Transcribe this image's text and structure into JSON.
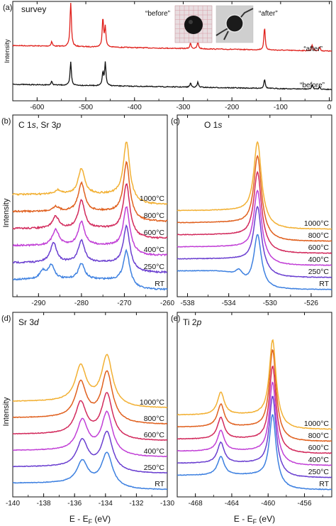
{
  "figure": {
    "panel_letters": [
      "(a)",
      "(b)",
      "(c)",
      "(d)",
      "(e)"
    ],
    "x_axis_label": "E - E",
    "x_axis_label_sub": "F",
    "x_axis_label_unit": " (eV)",
    "y_axis_label": "Intensity"
  },
  "chart_data": [
    {
      "id": "a",
      "type": "line",
      "panel_label": "(a)",
      "title": "survey",
      "ylabel": "Intensity",
      "xlim": [
        -650,
        5
      ],
      "xticks": [
        -600,
        -500,
        -400,
        -300,
        -200,
        -100,
        0
      ],
      "xtick_labels": [
        "-600",
        "-500",
        "-400",
        "-300",
        "-200",
        "-100",
        "0"
      ],
      "series_labels": [
        "“after”",
        "“before”"
      ],
      "inset_labels": [
        "“before”",
        "“after”"
      ],
      "series": [
        {
          "name": "“after”",
          "color": "#e0201b",
          "peaks": [
            [
              -531,
              1.0
            ],
            [
              -465,
              0.62
            ],
            [
              -460,
              0.42
            ],
            [
              -570,
              0.1
            ],
            [
              -285,
              0.12
            ],
            [
              -270,
              0.15
            ],
            [
              -133,
              0.48
            ],
            [
              -35,
              0.12
            ],
            [
              -20,
              0.08
            ]
          ]
        },
        {
          "name": "“before”",
          "color": "#111111",
          "peaks": [
            [
              -531,
              0.55
            ],
            [
              -465,
              0.3
            ],
            [
              -460,
              0.55
            ],
            [
              -570,
              0.08
            ],
            [
              -285,
              0.1
            ],
            [
              -270,
              0.12
            ],
            [
              -133,
              0.22
            ],
            [
              -35,
              0.1
            ],
            [
              -20,
              0.06
            ]
          ]
        }
      ],
      "grid": false
    },
    {
      "id": "b",
      "type": "line",
      "panel_label": "(b)",
      "title": "C 1s, Sr 3p",
      "ylabel": "Intensity",
      "xlim": [
        -296,
        -260
      ],
      "xticks": [
        -290,
        -280,
        -270,
        -260
      ],
      "xtick_labels": [
        "-290",
        "-280",
        "-270",
        "-260"
      ],
      "series_labels": [
        "1000°C",
        "800°C",
        "600°C",
        "400°C",
        "250°C",
        "RT"
      ],
      "series": [
        {
          "name": "1000°C",
          "peaks": [
            [
              -285.5,
              0.1
            ],
            [
              -280.0,
              0.65
            ],
            [
              -269.5,
              1.45
            ]
          ]
        },
        {
          "name": "800°C",
          "peaks": [
            [
              -286.0,
              0.12
            ],
            [
              -280.0,
              0.72
            ],
            [
              -269.5,
              1.35
            ]
          ]
        },
        {
          "name": "600°C",
          "peaks": [
            [
              -286.0,
              0.3
            ],
            [
              -280.0,
              0.7
            ],
            [
              -269.5,
              1.25
            ]
          ]
        },
        {
          "name": "400°C",
          "peaks": [
            [
              -286.0,
              0.4
            ],
            [
              -280.0,
              0.6
            ],
            [
              -269.5,
              1.1
            ]
          ]
        },
        {
          "name": "250°C",
          "peaks": [
            [
              -286.5,
              0.5
            ],
            [
              -280.0,
              0.55
            ],
            [
              -269.5,
              1.05
            ]
          ]
        },
        {
          "name": "RT",
          "peaks": [
            [
              -289.0,
              0.2
            ],
            [
              -287.0,
              0.35
            ],
            [
              -280.0,
              0.4
            ],
            [
              -269.5,
              0.85
            ]
          ]
        }
      ],
      "grid": false
    },
    {
      "id": "c",
      "type": "line",
      "panel_label": "(c)",
      "title": "O 1s",
      "xlim": [
        -539,
        -524
      ],
      "xticks": [
        -538,
        -534,
        -530,
        -526
      ],
      "xtick_labels": [
        "-538",
        "-534",
        "-530",
        "-526"
      ],
      "series_labels": [
        "1000°C",
        "800°C",
        "600°C",
        "400°C",
        "250°C",
        "RT"
      ],
      "series": [
        {
          "name": "1000°C",
          "peaks": [
            [
              -531.2,
              1.9
            ]
          ]
        },
        {
          "name": "800°C",
          "peaks": [
            [
              -531.2,
              1.85
            ]
          ]
        },
        {
          "name": "600°C",
          "peaks": [
            [
              -531.2,
              1.75
            ]
          ]
        },
        {
          "name": "400°C",
          "peaks": [
            [
              -531.2,
              1.6
            ]
          ]
        },
        {
          "name": "250°C",
          "peaks": [
            [
              -531.2,
              1.5
            ]
          ]
        },
        {
          "name": "RT",
          "peaks": [
            [
              -531.2,
              1.3
            ],
            [
              -533.0,
              0.2
            ]
          ]
        }
      ],
      "grid": false
    },
    {
      "id": "d",
      "type": "line",
      "panel_label": "(d)",
      "title": "Sr 3d",
      "ylabel": "Intensity",
      "xlim": [
        -140,
        -130
      ],
      "xticks": [
        -140,
        -138,
        -136,
        -134,
        -132,
        -130
      ],
      "xtick_labels": [
        "-140",
        "-138",
        "-136",
        "-134",
        "-132",
        "-130"
      ],
      "series_labels": [
        "1000°C",
        "800°C",
        "600°C",
        "400°C",
        "250°C",
        "RT"
      ],
      "series": [
        {
          "name": "1000°C",
          "peaks": [
            [
              -135.6,
              0.8
            ],
            [
              -133.9,
              1.1
            ]
          ]
        },
        {
          "name": "800°C",
          "peaks": [
            [
              -135.6,
              0.8
            ],
            [
              -133.9,
              1.1
            ]
          ]
        },
        {
          "name": "600°C",
          "peaks": [
            [
              -135.6,
              0.72
            ],
            [
              -133.9,
              0.98
            ]
          ]
        },
        {
          "name": "400°C",
          "peaks": [
            [
              -135.5,
              0.68
            ],
            [
              -133.9,
              0.92
            ]
          ]
        },
        {
          "name": "250°C",
          "peaks": [
            [
              -135.5,
              0.6
            ],
            [
              -133.9,
              0.85
            ]
          ]
        },
        {
          "name": "RT",
          "peaks": [
            [
              -135.5,
              0.5
            ],
            [
              -133.9,
              0.75
            ]
          ]
        }
      ],
      "grid": false
    },
    {
      "id": "e",
      "type": "line",
      "panel_label": "(e)",
      "title": "Ti 2p",
      "xlim": [
        -470,
        -453
      ],
      "xticks": [
        -468,
        -464,
        -460,
        -456
      ],
      "xtick_labels": [
        "-468",
        "-464",
        "-460",
        "-456"
      ],
      "series_labels": [
        "1000°C",
        "800°C",
        "600°C",
        "400°C",
        "250°C",
        "RT"
      ],
      "series": [
        {
          "name": "1000°C",
          "peaks": [
            [
              -465.2,
              0.55
            ],
            [
              -459.5,
              2.0
            ]
          ]
        },
        {
          "name": "800°C",
          "peaks": [
            [
              -465.2,
              0.55
            ],
            [
              -459.5,
              2.05
            ]
          ]
        },
        {
          "name": "600°C",
          "peaks": [
            [
              -465.2,
              0.52
            ],
            [
              -459.5,
              1.95
            ]
          ]
        },
        {
          "name": "400°C",
          "peaks": [
            [
              -465.2,
              0.5
            ],
            [
              -459.5,
              1.85
            ]
          ]
        },
        {
          "name": "250°C",
          "peaks": [
            [
              -465.2,
              0.5
            ],
            [
              -459.5,
              1.8
            ]
          ]
        },
        {
          "name": "RT",
          "peaks": [
            [
              -465.2,
              0.45
            ],
            [
              -459.5,
              1.65
            ]
          ]
        }
      ],
      "grid": false
    }
  ],
  "series_colors": [
    "#f2b033",
    "#e0601e",
    "#d22a5c",
    "#c13fd6",
    "#6a3fd0",
    "#3d80e0"
  ]
}
